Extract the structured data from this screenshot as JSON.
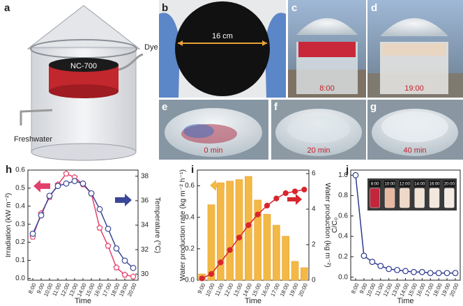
{
  "photos": [
    {
      "label": "a",
      "captions": [
        "NC-700",
        "Dye water",
        "Freshwater"
      ]
    },
    {
      "label": "b",
      "captions": [
        "16 cm"
      ]
    },
    {
      "label": "c",
      "captions": [
        "8:00"
      ]
    },
    {
      "label": "d",
      "captions": [
        "19:00"
      ]
    },
    {
      "label": "e",
      "captions": [
        "0 min"
      ]
    },
    {
      "label": "f",
      "captions": [
        "20 min"
      ]
    },
    {
      "label": "g",
      "captions": [
        "40 min"
      ]
    }
  ],
  "chart_data": [
    {
      "type": "line",
      "panel": "h",
      "x_label": "Time",
      "y_label": "Irradiation (kW m⁻²)",
      "y2_label": "Temperature (°C)",
      "categories": [
        "8:00",
        "9:00",
        "10:00",
        "11:00",
        "12:00",
        "13:00",
        "14:00",
        "15:00",
        "16:00",
        "17:00",
        "18:00",
        "19:00",
        "20:00"
      ],
      "series": [
        {
          "color": "#e2406c",
          "marker": "pentagon",
          "values": [
            0.23,
            0.36,
            0.45,
            0.52,
            0.58,
            0.56,
            0.52,
            0.47,
            0.28,
            0.18,
            0.06,
            0.02,
            0.01
          ]
        },
        {
          "color": "#3a4796",
          "marker": "circle",
          "axis": "y2",
          "values": [
            33.3,
            34.8,
            36.4,
            37.2,
            37.4,
            37.6,
            37.4,
            36.6,
            35.3,
            33.7,
            32.1,
            31.1,
            30.5
          ]
        }
      ],
      "ylim": [
        -0.01,
        0.6
      ],
      "yticks": [
        {
          "value": 0,
          "label": "0.0"
        },
        0.1,
        0.2,
        0.3,
        0.4,
        0.5,
        0.6
      ],
      "y2lim": [
        29.5,
        38.5
      ],
      "y2ticks": [
        30,
        32,
        34,
        36,
        38
      ]
    },
    {
      "type": "bar",
      "panel": "i",
      "x_label": "Time",
      "y_label": "Water production rate (kg m⁻² h⁻¹)",
      "y2_label": "Water production (kg m⁻²)",
      "categories": [
        "9:00",
        "10:00",
        "11:00",
        "12:00",
        "13:00",
        "14:00",
        "15:00",
        "16:00",
        "17:00",
        "18:00",
        "19:00",
        "20:00"
      ],
      "series": [
        {
          "color": "#f3b845",
          "values": [
            0.04,
            0.48,
            0.62,
            0.63,
            0.64,
            0.66,
            0.51,
            0.42,
            0.35,
            0.28,
            0.12,
            0.08
          ]
        },
        {
          "type": "line",
          "color": "#d7262e",
          "marker": "circle",
          "axis": "y2",
          "values": [
            0.1,
            0.35,
            1.0,
            1.7,
            2.4,
            3.1,
            3.7,
            4.2,
            4.6,
            4.9,
            5.0,
            5.1
          ]
        }
      ],
      "ylim": [
        0,
        0.7
      ],
      "yticks": [
        {
          "value": 0,
          "label": "0.0"
        },
        0.2,
        0.4,
        0.6
      ],
      "y2lim": [
        0,
        6.2
      ],
      "y2ticks": [
        0,
        2,
        4,
        6
      ]
    },
    {
      "type": "line",
      "panel": "j",
      "x_label": "Time",
      "y_label": "C/C₀",
      "categories": [
        "8:00",
        "9:00",
        "10:00",
        "11:00",
        "12:00",
        "13:00",
        "14:00",
        "15:00",
        "16:00",
        "17:00",
        "18:00",
        "19:00",
        "20:00"
      ],
      "series": [
        {
          "color": "#2c3a8f",
          "marker": "circle",
          "values": [
            1.0,
            0.21,
            0.15,
            0.11,
            0.08,
            0.07,
            0.06,
            0.05,
            0.05,
            0.04,
            0.04,
            0.04,
            0.04
          ]
        }
      ],
      "ylim": [
        -0.03,
        1.05
      ],
      "yticks": [
        {
          "value": 0,
          "label": "0.0"
        },
        0.2,
        0.4,
        0.6,
        0.8,
        {
          "value": 1,
          "label": "1.0"
        }
      ],
      "inset_labels": [
        "8:00",
        "10:00",
        "12:00",
        "14:00",
        "16:00",
        "20:00"
      ]
    }
  ]
}
